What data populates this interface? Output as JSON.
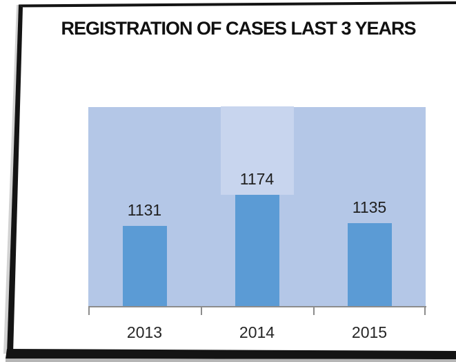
{
  "frame": {
    "color": "#141414",
    "shadow_bottom_color": "#b5b5b5",
    "shadow_left_color": "#d2d2d2",
    "background": "#ffffff"
  },
  "chart_data": {
    "type": "bar",
    "title": "REGISTRATION OF CASES LAST 3 YEARS",
    "categories": [
      "2013",
      "2014",
      "2015"
    ],
    "values": [
      1131,
      1174,
      1135
    ],
    "ylim": [
      1020,
      1295
    ],
    "xlabel": "",
    "ylabel": "",
    "gridlines": false,
    "legend": "none",
    "y_axis_labels_visible": false,
    "data_labels_visible": true,
    "highlighted_category": "2014",
    "colors": {
      "bar": "#5b9bd5",
      "plot_area_fill": "#b4c7e7",
      "highlight_band_fill": "#c8d5ee",
      "axis_line": "#8c8c8c",
      "data_label_text": "#1f1f1f",
      "category_label_text": "#262626",
      "title_text": "#111111"
    }
  }
}
